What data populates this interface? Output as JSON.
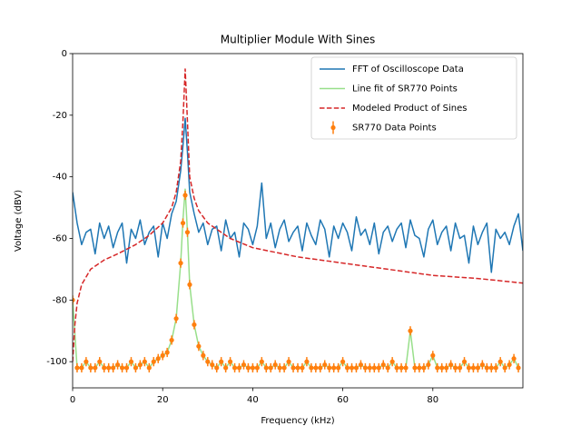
{
  "chart_data": {
    "type": "line",
    "title": "Multiplier Module With Sines",
    "x_label": "Frequency (kHz)",
    "y_label": "Voltage (dBV)",
    "xlim": [
      0,
      100
    ],
    "xticks": [
      0,
      20,
      40,
      60,
      80
    ],
    "ylim": [
      -108.5,
      0
    ],
    "yticks": [
      0,
      -20,
      -40,
      -60,
      -80,
      -100
    ],
    "legend": "upper right",
    "series": [
      {
        "name": "FFT of Oscilloscope Data",
        "color": "#1f77b4",
        "style": "solid",
        "x": [
          0,
          1,
          2,
          3,
          4,
          5,
          6,
          7,
          8,
          9,
          10,
          11,
          12,
          13,
          14,
          15,
          16,
          17,
          18,
          19,
          20,
          21,
          22,
          23,
          24,
          24.5,
          25,
          25.5,
          26,
          27,
          28,
          29,
          30,
          31,
          32,
          33,
          34,
          35,
          36,
          37,
          38,
          39,
          40,
          41,
          42,
          43,
          44,
          45,
          46,
          47,
          48,
          49,
          50,
          51,
          52,
          53,
          54,
          55,
          56,
          57,
          58,
          59,
          60,
          61,
          62,
          63,
          64,
          65,
          66,
          67,
          68,
          69,
          70,
          71,
          72,
          73,
          74,
          75,
          76,
          77,
          78,
          79,
          80,
          81,
          82,
          83,
          84,
          85,
          86,
          87,
          88,
          89,
          90,
          91,
          92,
          93,
          94,
          95,
          96,
          97,
          98,
          99,
          100
        ],
        "values": [
          -45,
          -55,
          -62,
          -58,
          -57,
          -65,
          -55,
          -60,
          -56,
          -63,
          -58,
          -55,
          -68,
          -57,
          -60,
          -54,
          -62,
          -58,
          -56,
          -66,
          -55,
          -60,
          -52,
          -48,
          -38,
          -30,
          -21,
          -32,
          -45,
          -52,
          -58,
          -55,
          -62,
          -57,
          -56,
          -64,
          -54,
          -60,
          -58,
          -66,
          -55,
          -57,
          -62,
          -56,
          -42,
          -60,
          -55,
          -63,
          -57,
          -54,
          -61,
          -58,
          -56,
          -64,
          -55,
          -59,
          -62,
          -54,
          -57,
          -66,
          -56,
          -60,
          -55,
          -58,
          -64,
          -53,
          -59,
          -57,
          -62,
          -55,
          -65,
          -58,
          -56,
          -61,
          -57,
          -55,
          -63,
          -54,
          -59,
          -60,
          -66,
          -57,
          -54,
          -62,
          -58,
          -56,
          -64,
          -55,
          -60,
          -59,
          -68,
          -56,
          -62,
          -58,
          -55,
          -71,
          -57,
          -60,
          -58,
          -62,
          -56,
          -52,
          -64
        ]
      },
      {
        "name": "Line fit of SR770 Points",
        "color": "#98df8a",
        "style": "solid",
        "x": [
          0,
          1,
          2,
          3,
          4,
          5,
          6,
          7,
          8,
          9,
          10,
          11,
          12,
          13,
          14,
          15,
          16,
          17,
          18,
          19,
          20,
          21,
          22,
          23,
          24,
          24.5,
          25,
          25.5,
          26,
          27,
          28,
          29,
          30,
          31,
          32,
          33,
          34,
          35,
          36,
          37,
          38,
          39,
          40,
          41,
          42,
          43,
          44,
          45,
          46,
          47,
          48,
          49,
          50,
          51,
          52,
          53,
          54,
          55,
          56,
          57,
          58,
          59,
          60,
          61,
          62,
          63,
          64,
          65,
          66,
          67,
          68,
          69,
          70,
          71,
          72,
          73,
          74,
          75,
          76,
          77,
          78,
          79,
          80,
          81,
          82,
          83,
          84,
          85,
          86,
          87,
          88,
          89,
          90,
          91,
          92,
          93,
          94,
          95,
          96,
          97,
          98,
          99
        ],
        "values": [
          -80,
          -102,
          -102,
          -100,
          -102,
          -102,
          -100,
          -102,
          -102,
          -102,
          -101,
          -102,
          -102,
          -100,
          -102,
          -101,
          -100,
          -102,
          -100,
          -99,
          -98,
          -97,
          -93,
          -86,
          -68,
          -54,
          -44,
          -58,
          -75,
          -88,
          -95,
          -98,
          -100,
          -101,
          -102,
          -100,
          -102,
          -100,
          -102,
          -102,
          -101,
          -102,
          -102,
          -102,
          -100,
          -102,
          -102,
          -101,
          -102,
          -102,
          -100,
          -102,
          -102,
          -102,
          -100,
          -102,
          -102,
          -102,
          -101,
          -102,
          -102,
          -102,
          -100,
          -102,
          -102,
          -102,
          -101,
          -102,
          -102,
          -102,
          -102,
          -101,
          -102,
          -100,
          -102,
          -102,
          -102,
          -90,
          -102,
          -102,
          -102,
          -101,
          -98,
          -102,
          -102,
          -102,
          -101,
          -102,
          -102,
          -100,
          -102,
          -102,
          -102,
          -101,
          -102,
          -102,
          -102,
          -100,
          -102,
          -101,
          -99,
          -102
        ]
      },
      {
        "name": "Modeled Product of Sines",
        "color": "#d62728",
        "style": "dashed",
        "x": [
          0,
          0.5,
          1,
          2,
          4,
          7,
          10,
          14,
          17,
          20,
          22,
          23,
          24,
          24.5,
          25,
          25.5,
          26,
          27,
          28,
          30,
          35,
          40,
          50,
          60,
          70,
          80,
          90,
          100
        ],
        "values": [
          -100,
          -88,
          -81,
          -75,
          -70,
          -67,
          -65,
          -62,
          -59,
          -55,
          -50,
          -45,
          -35,
          -22,
          -5,
          -22,
          -40,
          -47,
          -51,
          -55,
          -60,
          -63,
          -66,
          -68,
          -70,
          -72,
          -73,
          -74.5
        ]
      },
      {
        "name": "SR770 Data Points",
        "color": "#ff7f0e",
        "style": "errorbar",
        "error": 1.5,
        "x": [
          0,
          1,
          2,
          3,
          4,
          5,
          6,
          7,
          8,
          9,
          10,
          11,
          12,
          13,
          14,
          15,
          16,
          17,
          18,
          19,
          20,
          21,
          22,
          23,
          24,
          24.5,
          25,
          25.5,
          26,
          27,
          28,
          29,
          30,
          31,
          32,
          33,
          34,
          35,
          36,
          37,
          38,
          39,
          40,
          41,
          42,
          43,
          44,
          45,
          46,
          47,
          48,
          49,
          50,
          51,
          52,
          53,
          54,
          55,
          56,
          57,
          58,
          59,
          60,
          61,
          62,
          63,
          64,
          65,
          66,
          67,
          68,
          69,
          70,
          71,
          72,
          73,
          74,
          75,
          76,
          77,
          78,
          79,
          80,
          81,
          82,
          83,
          84,
          85,
          86,
          87,
          88,
          89,
          90,
          91,
          92,
          93,
          94,
          95,
          96,
          97,
          98,
          99
        ],
        "values": [
          -80,
          -102,
          -102,
          -100,
          -102,
          -102,
          -100,
          -102,
          -102,
          -102,
          -101,
          -102,
          -102,
          -100,
          -102,
          -101,
          -100,
          -102,
          -100,
          -99,
          -98,
          -97,
          -93,
          -86,
          -68,
          -55,
          -46,
          -58,
          -75,
          -88,
          -95,
          -98,
          -100,
          -101,
          -102,
          -100,
          -102,
          -100,
          -102,
          -102,
          -101,
          -102,
          -102,
          -102,
          -100,
          -102,
          -102,
          -101,
          -102,
          -102,
          -100,
          -102,
          -102,
          -102,
          -100,
          -102,
          -102,
          -102,
          -101,
          -102,
          -102,
          -102,
          -100,
          -102,
          -102,
          -102,
          -101,
          -102,
          -102,
          -102,
          -102,
          -101,
          -102,
          -100,
          -102,
          -102,
          -102,
          -90,
          -102,
          -102,
          -102,
          -101,
          -98,
          -102,
          -102,
          -102,
          -101,
          -102,
          -102,
          -100,
          -102,
          -102,
          -102,
          -101,
          -102,
          -102,
          -102,
          -100,
          -102,
          -101,
          -99,
          -102
        ]
      }
    ]
  }
}
